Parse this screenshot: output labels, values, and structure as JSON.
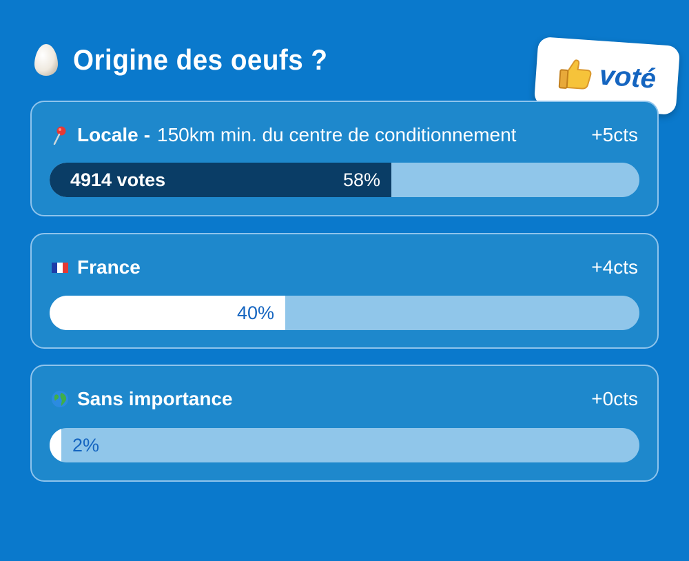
{
  "poll": {
    "title": "Origine des oeufs ?",
    "title_icon": "egg-icon",
    "vote_badge": {
      "label": "voté",
      "icon": "thumbs-up-icon"
    },
    "options": [
      {
        "icon": "pin-icon",
        "label": "Locale",
        "separator": "-",
        "description": "150km min. du centre de conditionnement",
        "points": "+5cts",
        "votes_label": "4914 votes",
        "percent_label": "58%",
        "percent": 58,
        "selected": true
      },
      {
        "icon": "france-flag-icon",
        "label": "France",
        "points": "+4cts",
        "percent_label": "40%",
        "percent": 40
      },
      {
        "icon": "globe-icon",
        "label": "Sans importance",
        "points": "+0cts",
        "percent_label": "2%",
        "percent": 2
      }
    ]
  },
  "colors": {
    "background": "#0a79cc",
    "card": "#1e88cc",
    "card_border": "#8fc4ec",
    "bar_track": "#90c6ea",
    "selected_fill": "#0a3d66",
    "fill": "#ffffff",
    "badge_text": "#1565c0"
  }
}
